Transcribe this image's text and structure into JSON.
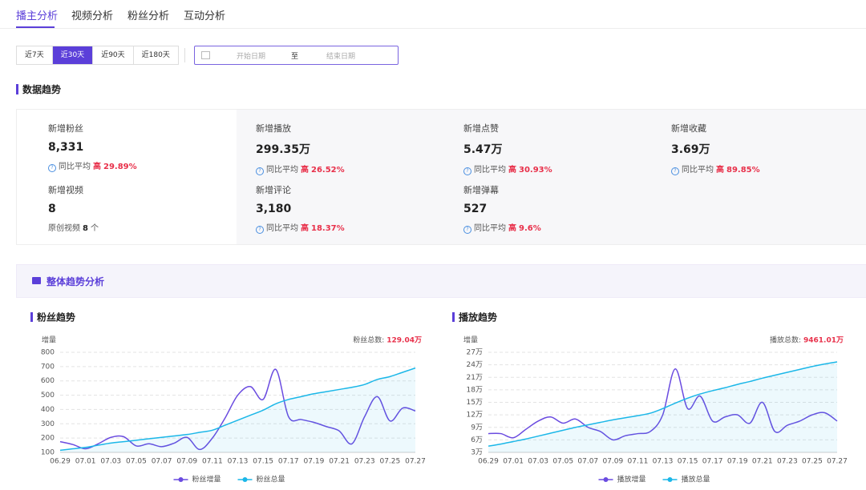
{
  "tabs": [
    "播主分析",
    "视频分析",
    "粉丝分析",
    "互动分析"
  ],
  "ranges": [
    "近7天",
    "近30天",
    "近90天",
    "近180天"
  ],
  "date_picker": {
    "start": "开始日期",
    "sep": "至",
    "end": "结束日期"
  },
  "section_title": "数据趋势",
  "stats": [
    {
      "label": "新增粉丝",
      "value": "8,331",
      "compare": "同比平均",
      "level": "高",
      "change": "29.89%"
    },
    {
      "label": "新增播放",
      "value": "299.35万",
      "compare": "同比平均",
      "level": "高",
      "change": "26.52%"
    },
    {
      "label": "新增点赞",
      "value": "5.47万",
      "compare": "同比平均",
      "level": "高",
      "change": "30.93%"
    },
    {
      "label": "新增收藏",
      "value": "3.69万",
      "compare": "同比平均",
      "level": "高",
      "change": "89.85%"
    },
    {
      "label": "新增视频",
      "value": "8",
      "note": "原创视频",
      "note_value": "8",
      "note_unit": "个"
    },
    {
      "label": "新增评论",
      "value": "3,180",
      "compare": "同比平均",
      "level": "高",
      "change": "18.37%"
    },
    {
      "label": "新增弹幕",
      "value": "527",
      "compare": "同比平均",
      "level": "高",
      "change": "9.6%"
    }
  ],
  "panel_title": "整体趋势分析",
  "chart_data": [
    {
      "type": "line",
      "title": "粉丝趋势",
      "y_label": "增量",
      "total_label": "粉丝总数:",
      "total_value": "129.04万",
      "categories": [
        "06.29",
        null,
        "07.01",
        null,
        "07.03",
        null,
        "07.05",
        null,
        "07.07",
        null,
        "07.09",
        null,
        "07.11",
        null,
        "07.13",
        null,
        "07.15",
        null,
        "07.17",
        null,
        "07.19",
        null,
        "07.21",
        null,
        "07.23",
        null,
        "07.25",
        null,
        "07.27"
      ],
      "ylim": [
        100,
        800
      ],
      "yticks": [
        100,
        200,
        300,
        400,
        500,
        600,
        700,
        800
      ],
      "grid": true,
      "series": [
        {
          "name": "粉丝增量",
          "color": "#6a4be0",
          "values": [
            175,
            155,
            125,
            160,
            205,
            210,
            145,
            160,
            140,
            165,
            205,
            120,
            200,
            340,
            500,
            560,
            470,
            680,
            350,
            330,
            310,
            280,
            250,
            160,
            350,
            490,
            320,
            410,
            390
          ]
        },
        {
          "name": "粉丝总量",
          "color": "#1bb7e8",
          "area": true,
          "values": [
            115,
            125,
            135,
            150,
            165,
            175,
            185,
            195,
            205,
            215,
            225,
            240,
            255,
            290,
            325,
            360,
            395,
            440,
            470,
            490,
            510,
            525,
            540,
            555,
            575,
            610,
            630,
            660,
            690
          ]
        }
      ]
    },
    {
      "type": "line",
      "title": "播放趋势",
      "y_label": "增量",
      "total_label": "播放总数:",
      "total_value": "9461.01万",
      "categories": [
        "06.29",
        null,
        "07.01",
        null,
        "07.03",
        null,
        "07.05",
        null,
        "07.07",
        null,
        "07.09",
        null,
        "07.11",
        null,
        "07.13",
        null,
        "07.15",
        null,
        "07.17",
        null,
        "07.19",
        null,
        "07.21",
        null,
        "07.23",
        null,
        "07.25",
        null,
        "07.27"
      ],
      "ylim": [
        3,
        27
      ],
      "yticks": [
        {
          "value": 3,
          "label": "3万"
        },
        {
          "value": 6,
          "label": "6万"
        },
        {
          "value": 9,
          "label": "9万"
        },
        {
          "value": 12,
          "label": "12万"
        },
        {
          "value": 15,
          "label": "15万"
        },
        {
          "value": 18,
          "label": "18万"
        },
        {
          "value": 21,
          "label": "21万"
        },
        {
          "value": 24,
          "label": "24万"
        },
        {
          "value": 27,
          "label": "27万"
        }
      ],
      "grid": true,
      "series": [
        {
          "name": "播放增量",
          "color": "#6a4be0",
          "values": [
            7.5,
            7.5,
            6.5,
            8.5,
            10.5,
            11.5,
            10,
            11,
            9,
            8,
            6,
            7,
            7.5,
            8,
            12,
            23,
            13.5,
            16.5,
            10.5,
            11.5,
            12,
            10,
            15,
            8,
            9.5,
            10.5,
            12,
            12.5,
            10.5
          ]
        },
        {
          "name": "播放总量",
          "color": "#1bb7e8",
          "area": true,
          "values": [
            4.5,
            5,
            5.6,
            6.2,
            6.9,
            7.6,
            8.3,
            9,
            9.6,
            10.2,
            10.8,
            11.3,
            11.8,
            12.4,
            13.5,
            14.8,
            16,
            17,
            17.8,
            18.5,
            19.3,
            20,
            20.8,
            21.5,
            22.2,
            22.9,
            23.6,
            24.2,
            24.7
          ]
        }
      ]
    }
  ]
}
